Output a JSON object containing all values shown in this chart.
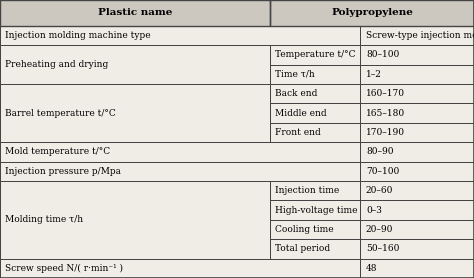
{
  "title_col1": "Plastic name",
  "title_col2": "Polypropylene",
  "bg_color": "#f0ede6",
  "header_bg": "#ccc8c0",
  "border_color": "#444444",
  "text_color": "#000000",
  "font_size": 6.5,
  "header_font_size": 7.5,
  "rows": [
    {
      "col1": "Injection molding machine type",
      "col1b": "",
      "col2": "Screw-type injection molding machine",
      "span1": true
    },
    {
      "col1": "Preheating and drying",
      "col1b": "Temperature t/°C",
      "col2": "80–100",
      "span1": false
    },
    {
      "col1": "",
      "col1b": "Time τ/h",
      "col2": "1–2",
      "span1": false
    },
    {
      "col1": "Barrel temperature t/°C",
      "col1b": "Back end",
      "col2": "160–170",
      "span1": false
    },
    {
      "col1": "",
      "col1b": "Middle end",
      "col2": "165–180",
      "span1": false
    },
    {
      "col1": "",
      "col1b": "Front end",
      "col2": "170–190",
      "span1": false
    },
    {
      "col1": "Mold temperature t/°C",
      "col1b": "",
      "col2": "80–90",
      "span1": true
    },
    {
      "col1": "Injection pressure p/Mpa",
      "col1b": "",
      "col2": "70–100",
      "span1": true
    },
    {
      "col1": "Molding time τ/h",
      "col1b": "Injection time",
      "col2": "20–60",
      "span1": false
    },
    {
      "col1": "",
      "col1b": "High-voltage time",
      "col2": "0–3",
      "span1": false
    },
    {
      "col1": "",
      "col1b": "Cooling time",
      "col2": "20–90",
      "span1": false
    },
    {
      "col1": "",
      "col1b": "Total period",
      "col2": "50–160",
      "span1": false
    },
    {
      "col1": "Screw speed N/( r·min⁻¹ )",
      "col1b": "",
      "col2": "48",
      "span1": true
    }
  ],
  "col_boundaries": [
    0.0,
    0.57,
    0.76,
    1.0
  ],
  "figsize": [
    4.74,
    2.78
  ],
  "dpi": 100
}
